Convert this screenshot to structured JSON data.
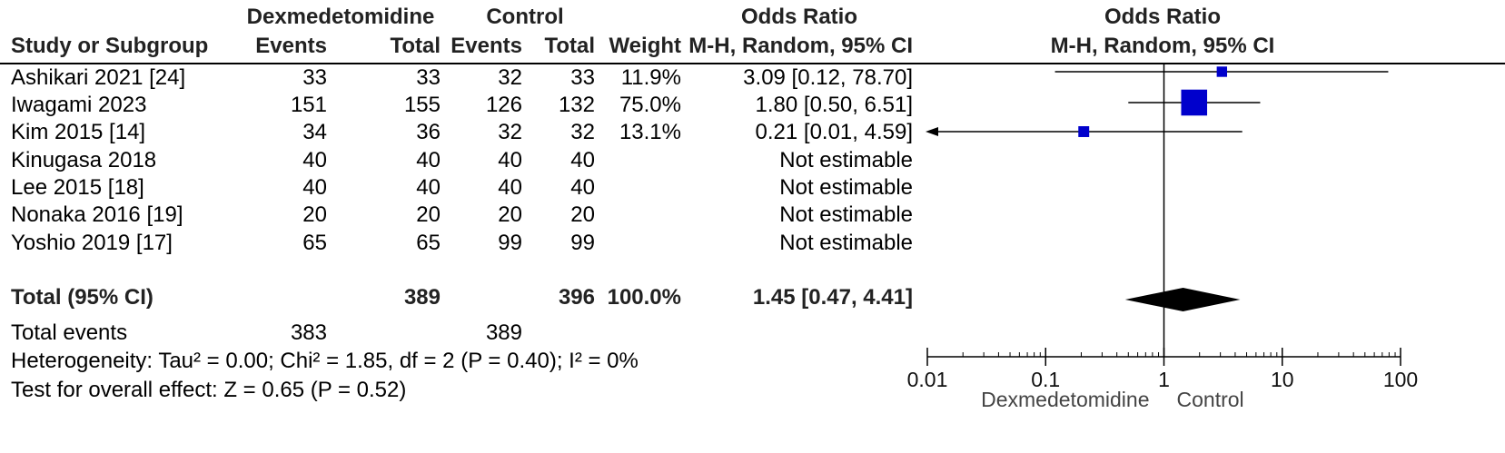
{
  "header": {
    "group1_label": "Dexmedetomidine",
    "group2_label": "Control",
    "odds_ratio_label": "Odds Ratio",
    "plot_odds_ratio_label": "Odds Ratio",
    "col_study": "Study or Subgroup",
    "col_events1": "Events",
    "col_total1": "Total",
    "col_events2": "Events",
    "col_total2": "Total",
    "col_weight": "Weight",
    "col_method": "M-H, Random, 95% CI",
    "plot_method": "M-H, Random, 95% CI"
  },
  "studies": [
    {
      "name": "Ashikari 2021 [24]",
      "events1": "33",
      "total1": "33",
      "events2": "32",
      "total2": "33",
      "weight": "11.9%",
      "ci_text": "3.09 [0.12, 78.70]"
    },
    {
      "name": "Iwagami 2023",
      "events1": "151",
      "total1": "155",
      "events2": "126",
      "total2": "132",
      "weight": "75.0%",
      "ci_text": "1.80 [0.50, 6.51]"
    },
    {
      "name": "Kim 2015 [14]",
      "events1": "34",
      "total1": "36",
      "events2": "32",
      "total2": "32",
      "weight": "13.1%",
      "ci_text": "0.21 [0.01, 4.59]"
    },
    {
      "name": "Kinugasa 2018",
      "events1": "40",
      "total1": "40",
      "events2": "40",
      "total2": "40",
      "weight": "",
      "ci_text": "Not estimable"
    },
    {
      "name": "Lee 2015 [18]",
      "events1": "40",
      "total1": "40",
      "events2": "40",
      "total2": "40",
      "weight": "",
      "ci_text": "Not estimable"
    },
    {
      "name": "Nonaka 2016 [19]",
      "events1": "20",
      "total1": "20",
      "events2": "20",
      "total2": "20",
      "weight": "",
      "ci_text": "Not estimable"
    },
    {
      "name": "Yoshio 2019 [17]",
      "events1": "65",
      "total1": "65",
      "events2": "99",
      "total2": "99",
      "weight": "",
      "ci_text": "Not estimable"
    }
  ],
  "total": {
    "label": "Total (95% CI)",
    "total1": "389",
    "total2": "396",
    "weight": "100.0%",
    "ci_text": "1.45 [0.47, 4.41]"
  },
  "total_events": {
    "label": "Total events",
    "events1": "383",
    "events2": "389"
  },
  "heterogeneity": "Heterogeneity: Tau² = 0.00; Chi² = 1.85, df = 2 (P = 0.40); I² = 0%",
  "overall_effect": "Test for overall effect: Z = 0.65 (P = 0.52)",
  "chart_data": {
    "type": "forest",
    "title": "Odds Ratio",
    "subtitle": "M-H, Random, 95% CI",
    "x_scale": "log",
    "xlim": [
      0.01,
      100
    ],
    "ticks": [
      0.01,
      0.1,
      1,
      10,
      100
    ],
    "tick_labels": [
      "0.01",
      "0.1",
      "1",
      "10",
      "100"
    ],
    "axis_favours_left": "Dexmedetomidine",
    "axis_favours_right": "Control",
    "marker_color": "#0000cc",
    "summary_color": "#000000",
    "estimates": [
      {
        "study": "Ashikari 2021 [24]",
        "or": 3.09,
        "lower": 0.12,
        "upper": 78.7,
        "weight": 11.9
      },
      {
        "study": "Iwagami 2023",
        "or": 1.8,
        "lower": 0.5,
        "upper": 6.51,
        "weight": 75.0
      },
      {
        "study": "Kim 2015 [14]",
        "or": 0.21,
        "lower": 0.01,
        "upper": 4.59,
        "weight": 13.1
      }
    ],
    "summary": {
      "or": 1.45,
      "lower": 0.47,
      "upper": 4.41
    }
  }
}
